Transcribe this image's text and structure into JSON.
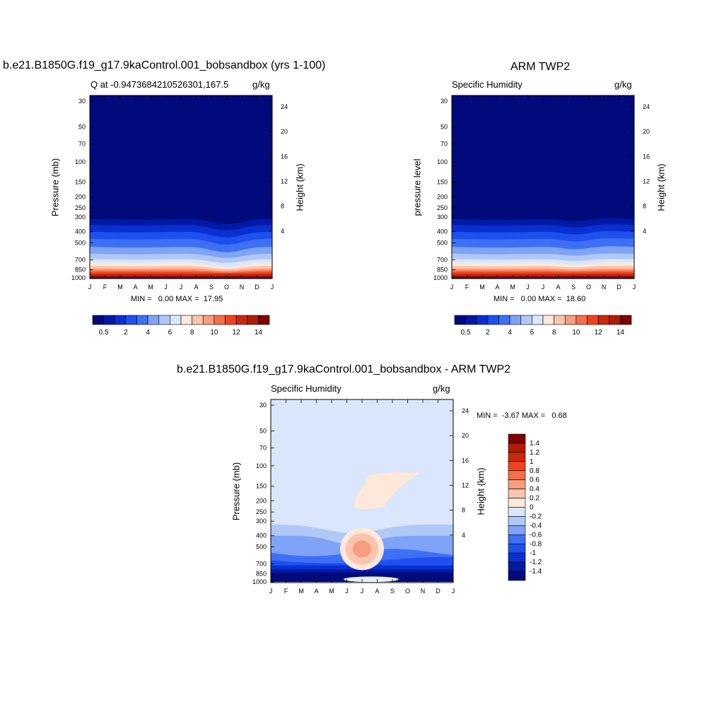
{
  "panels": [
    {
      "title": "b.e21.B1850G.f19_g17.9kaControl.001_bobsandbox (yrs 1-100)",
      "left_string": "Q at -0.9473684210526301,167.5",
      "right_string": "g/kg",
      "ylabel_left": "Pressure (mb)",
      "ylabel_right": "Height (km)",
      "minmax": "MIN =   0.00 MAX =  17.95"
    },
    {
      "title": "ARM TWP2",
      "left_string": "Specific Humidity",
      "right_string": "g/kg",
      "ylabel_left": "pressure level",
      "ylabel_right": "Height (km)",
      "minmax": "MIN =   0.00 MAX =  18.60"
    },
    {
      "title": "b.e21.B1850G.f19_g17.9kaControl.001_bobsandbox - ARM TWP2",
      "left_string": "Specific Humidity",
      "right_string": "g/kg",
      "ylabel_left": "Pressure (mb)",
      "ylabel_right": "Height (km)",
      "minmax": "MIN =  -3.67 MAX =   0.68"
    }
  ],
  "axes": {
    "months": [
      "J",
      "F",
      "M",
      "A",
      "M",
      "J",
      "J",
      "A",
      "S",
      "O",
      "N",
      "D",
      "J"
    ],
    "pressure_ticks": [
      "30",
      "50",
      "70",
      "100",
      "150",
      "200",
      "250",
      "300",
      "400",
      "500",
      "700",
      "850",
      "1000"
    ],
    "height_ticks": [
      "24",
      "20",
      "16",
      "12",
      "8",
      "4"
    ]
  },
  "colorbars": {
    "q_colors": [
      "#000a7a",
      "#001aa6",
      "#0a2fd1",
      "#1e50ef",
      "#3e70f6",
      "#7fa3f6",
      "#b0c8f6",
      "#d9e6fb",
      "#fde8da",
      "#f9c5ac",
      "#f79e80",
      "#f56f4b",
      "#ef4320",
      "#c92a0a",
      "#b01c05",
      "#7e0000"
    ],
    "q_labels": [
      "0.5",
      "2",
      "4",
      "6",
      "8",
      "10",
      "12",
      "14"
    ],
    "diff_colors": [
      "#000a7a",
      "#001aa6",
      "#0a2fd1",
      "#1e50ef",
      "#3e70f6",
      "#7fa3f6",
      "#b0c8f6",
      "#d9e6fb",
      "#fde8da",
      "#f9c5ac",
      "#f79e80",
      "#f56f4b",
      "#ef4320",
      "#c92a0a",
      "#b01c05",
      "#7e0000"
    ],
    "diff_labels": [
      "1.4",
      "1.2",
      "1",
      "0.8",
      "0.6",
      "0.4",
      "0.2",
      "0",
      "-0.2",
      "-0.4",
      "-0.6",
      "-0.8",
      "-1",
      "-1.2",
      "-1.4"
    ]
  }
}
